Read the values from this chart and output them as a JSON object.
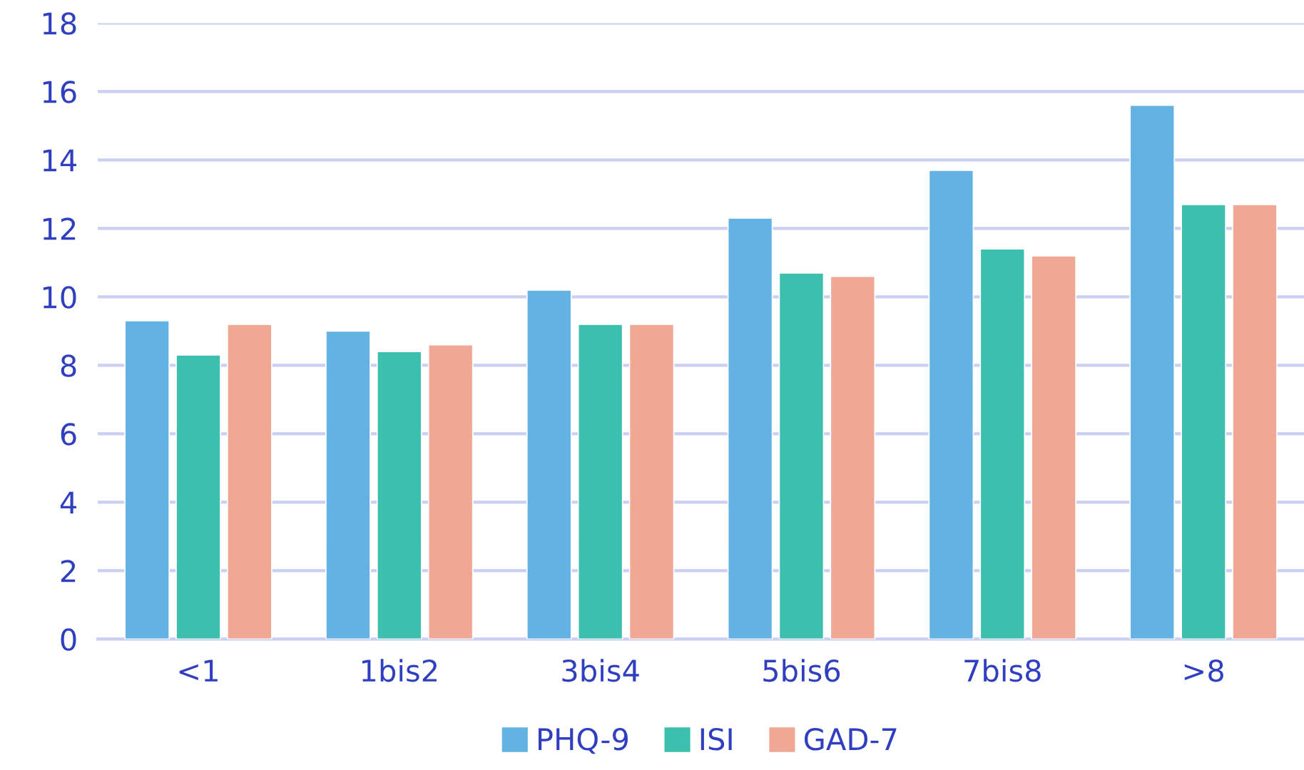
{
  "chart_data": {
    "type": "bar",
    "categories": [
      "<1",
      "1bis2",
      "3bis4",
      "5bis6",
      "7bis8",
      ">8"
    ],
    "series": [
      {
        "name": "PHQ-9",
        "color": "#62b3e4",
        "values": [
          9.3,
          9.0,
          10.2,
          12.3,
          13.7,
          15.6
        ]
      },
      {
        "name": "ISI",
        "color": "#3dbfae",
        "values": [
          8.3,
          8.4,
          9.2,
          10.7,
          11.4,
          12.7
        ]
      },
      {
        "name": "GAD-7",
        "color": "#f0a793",
        "values": [
          9.2,
          8.6,
          9.2,
          10.6,
          11.2,
          12.7
        ]
      }
    ],
    "ylim": [
      0,
      18
    ],
    "yticks": [
      0,
      2,
      4,
      6,
      8,
      10,
      12,
      14,
      16,
      18
    ],
    "grid": "y",
    "legend": "bottom"
  }
}
